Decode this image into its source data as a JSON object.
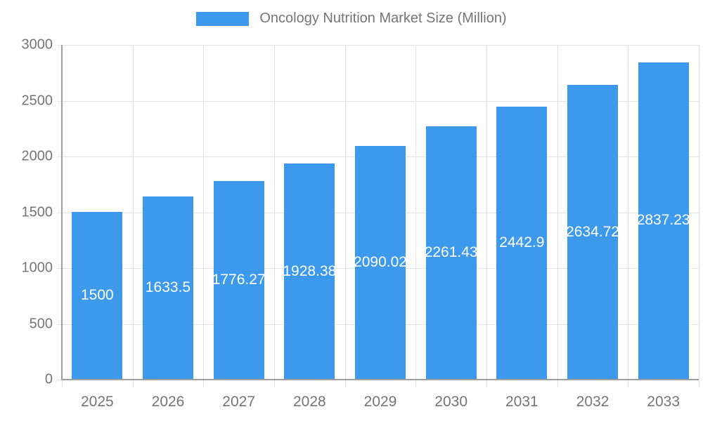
{
  "legend": {
    "label": "Oncology Nutrition Market Size (Million)"
  },
  "chart_data": {
    "type": "bar",
    "title": "Oncology Nutrition Market Size (Million)",
    "categories": [
      "2025",
      "2026",
      "2027",
      "2028",
      "2029",
      "2030",
      "2031",
      "2032",
      "2033"
    ],
    "values": [
      1500,
      1633.5,
      1776.27,
      1928.38,
      2090.02,
      2261.43,
      2442.9,
      2634.72,
      2837.23
    ],
    "value_labels": [
      "1500",
      "1633.5",
      "1776.27",
      "1928.38",
      "2090.02",
      "2261.43",
      "2442.9",
      "2634.72",
      "2837.23"
    ],
    "series_name": "Oncology Nutrition Market Size (Million)",
    "xlabel": "",
    "ylabel": "",
    "ylim": [
      0,
      3000
    ],
    "yticks": [
      0,
      500,
      1000,
      1500,
      2000,
      2500,
      3000
    ],
    "grid": true,
    "legend_position": "top",
    "colors": {
      "bar_fill": "#3C99EC",
      "axis_line": "#9E9E9E",
      "gridline": "#E5E5E5",
      "tick_text": "#757575",
      "value_text": "#FFFFFF",
      "background": "#FFFFFF"
    }
  }
}
